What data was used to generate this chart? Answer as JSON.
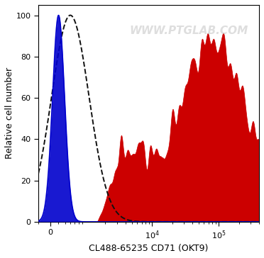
{
  "title": "",
  "xlabel": "CL488-65235 CD71 (OKT9)",
  "ylabel": "Relative cell number",
  "watermark": "WWW.PTGLAB.COM",
  "ylim": [
    0,
    105
  ],
  "yticks": [
    0,
    20,
    40,
    60,
    80,
    100
  ],
  "blue_color": "#0000cc",
  "red_color": "#cc0000",
  "dashed_color": "#111111",
  "background_color": "#ffffff",
  "xlabel_fontsize": 9,
  "ylabel_fontsize": 9,
  "tick_fontsize": 8,
  "watermark_fontsize": 11,
  "watermark_color": "#c8c8c8",
  "watermark_alpha": 0.6
}
